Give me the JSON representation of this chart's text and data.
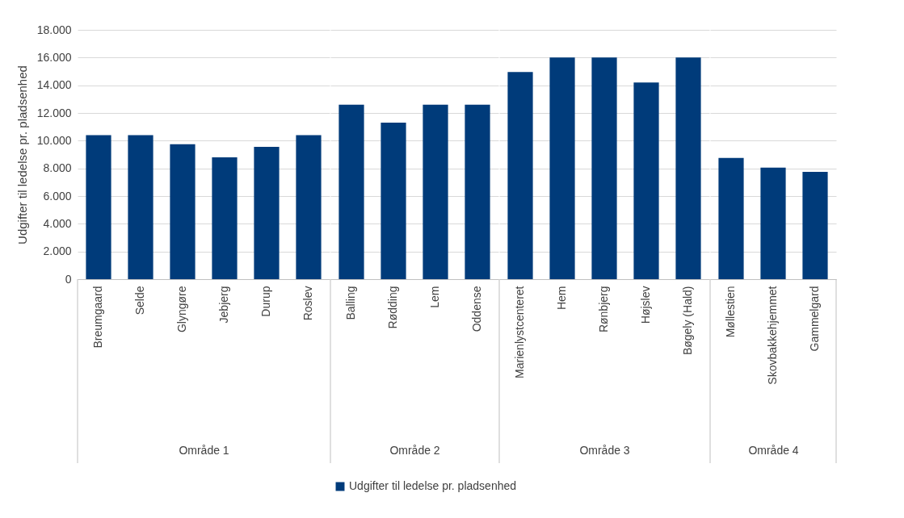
{
  "chart_data": [
    {
      "type": "bar",
      "ylabel": "Udgifter til ledelse pr. pladsenhed",
      "xlabel": "Område 1",
      "categories": [
        "Breumgaard",
        "Selde",
        "Glyngøre",
        "Jebjerg",
        "Durup",
        "Roslev"
      ],
      "series": [
        {
          "name": "Udgifter til ledelse pr. pladsenhed",
          "color": "#003b7a",
          "values": [
            10400,
            10400,
            9750,
            8800,
            9550,
            10400
          ]
        }
      ],
      "ylim": [
        0,
        18000
      ],
      "yticks": [
        {
          "value": 0,
          "label": "0"
        },
        {
          "value": 2000,
          "label": "2.000"
        },
        {
          "value": 4000,
          "label": "4.000"
        },
        {
          "value": 6000,
          "label": "6.000"
        },
        {
          "value": 8000,
          "label": "8.000"
        },
        {
          "value": 10000,
          "label": "10.000"
        },
        {
          "value": 12000,
          "label": "12.000"
        },
        {
          "value": 14000,
          "label": "14.000"
        },
        {
          "value": 16000,
          "label": "16.000"
        },
        {
          "value": 18000,
          "label": "18.000"
        }
      ],
      "grid": "y",
      "legend": "bottom"
    },
    {
      "type": "bar",
      "xlabel": "Område 2",
      "categories": [
        "Balling",
        "Rødding",
        "Lem",
        "Oddense"
      ],
      "series": [
        {
          "color": "#003b7a",
          "values": [
            12600,
            11300,
            12600,
            12600
          ]
        }
      ],
      "ylim": [
        0,
        18000
      ],
      "yticks": [
        {
          "value": 0,
          "label": null
        },
        {
          "value": 2000,
          "label": null
        },
        {
          "value": 4000,
          "label": null
        },
        {
          "value": 6000,
          "label": null
        },
        {
          "value": 8000,
          "label": null
        },
        {
          "value": 10000,
          "label": null
        },
        {
          "value": 12000,
          "label": null
        },
        {
          "value": 14000,
          "label": null
        },
        {
          "value": 16000,
          "label": null
        },
        {
          "value": 18000,
          "label": null
        }
      ],
      "grid": "y",
      "tick_labels": "x"
    },
    {
      "type": "bar",
      "xlabel": "Område 3",
      "categories": [
        "Marienlystcenteret",
        "Hem",
        "Rønbjerg",
        "Højslev",
        "Bøgely (Hald)"
      ],
      "series": [
        {
          "color": "#003b7a",
          "values": [
            14950,
            16000,
            16000,
            14200,
            16000
          ]
        }
      ],
      "ylim": [
        0,
        18000
      ],
      "yticks": [
        {
          "value": 0,
          "label": null
        },
        {
          "value": 2000,
          "label": null
        },
        {
          "value": 4000,
          "label": null
        },
        {
          "value": 6000,
          "label": null
        },
        {
          "value": 8000,
          "label": null
        },
        {
          "value": 10000,
          "label": null
        },
        {
          "value": 12000,
          "label": null
        },
        {
          "value": 14000,
          "label": null
        },
        {
          "value": 16000,
          "label": null
        },
        {
          "value": 18000,
          "label": null
        }
      ],
      "grid": "y",
      "tick_labels": "x"
    },
    {
      "type": "bar",
      "xlabel": "Område 4",
      "categories": [
        "Møllestien",
        "Skovbakkehjemmet",
        "Gammelgard"
      ],
      "series": [
        {
          "color": "#003b7a",
          "values": [
            8750,
            8050,
            7750
          ]
        }
      ],
      "ylim": [
        0,
        18000
      ],
      "yticks": [
        {
          "value": 0,
          "label": null
        },
        {
          "value": 2000,
          "label": null
        },
        {
          "value": 4000,
          "label": null
        },
        {
          "value": 6000,
          "label": null
        },
        {
          "value": 8000,
          "label": null
        },
        {
          "value": 10000,
          "label": null
        },
        {
          "value": 12000,
          "label": null
        },
        {
          "value": 14000,
          "label": null
        },
        {
          "value": 16000,
          "label": null
        },
        {
          "value": 18000,
          "label": null
        }
      ],
      "grid": "y",
      "tick_labels": "x"
    }
  ]
}
